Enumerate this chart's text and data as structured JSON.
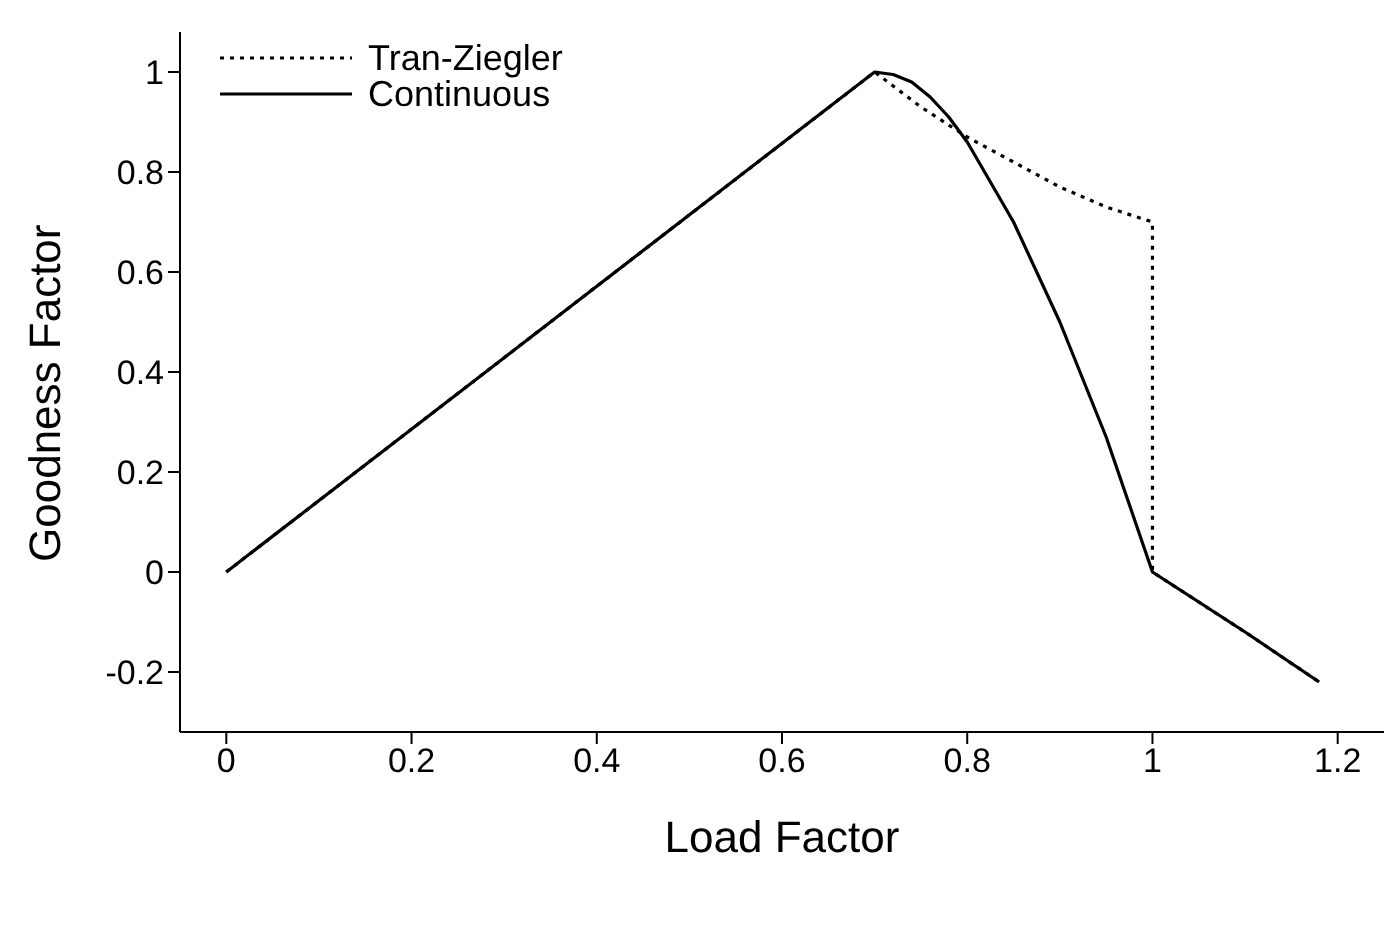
{
  "chart_data": {
    "type": "line",
    "xlabel": "Load Factor",
    "ylabel": "Goodness Factor",
    "xlim": [
      -0.05,
      1.25
    ],
    "ylim": [
      -0.32,
      1.08
    ],
    "xticks": [
      0,
      0.2,
      0.4,
      0.6,
      0.8,
      1,
      1.2
    ],
    "yticks": [
      -0.2,
      0,
      0.2,
      0.4,
      0.6,
      0.8,
      1
    ],
    "grid": false,
    "legend": "top left",
    "marker": "none",
    "series": [
      {
        "name": "Tran-Ziegler",
        "color": "#000000",
        "line_style": "dotted",
        "x": [
          0,
          0.7,
          0.75,
          0.8,
          0.85,
          0.9,
          0.95,
          1,
          1,
          1.05,
          1.1,
          1.18
        ],
        "values": [
          0,
          1,
          0.93,
          0.87,
          0.82,
          0.77,
          0.73,
          0.7,
          0,
          -0.06,
          -0.12,
          -0.22
        ]
      },
      {
        "name": "Continuous",
        "color": "#000000",
        "line_style": "solid",
        "x": [
          0,
          0.7,
          0.72,
          0.74,
          0.76,
          0.78,
          0.8,
          0.85,
          0.9,
          0.95,
          1,
          1.05,
          1.1,
          1.18
        ],
        "values": [
          0,
          1,
          0.995,
          0.98,
          0.95,
          0.91,
          0.86,
          0.7,
          0.5,
          0.27,
          0,
          -0.06,
          -0.12,
          -0.22
        ]
      }
    ]
  }
}
